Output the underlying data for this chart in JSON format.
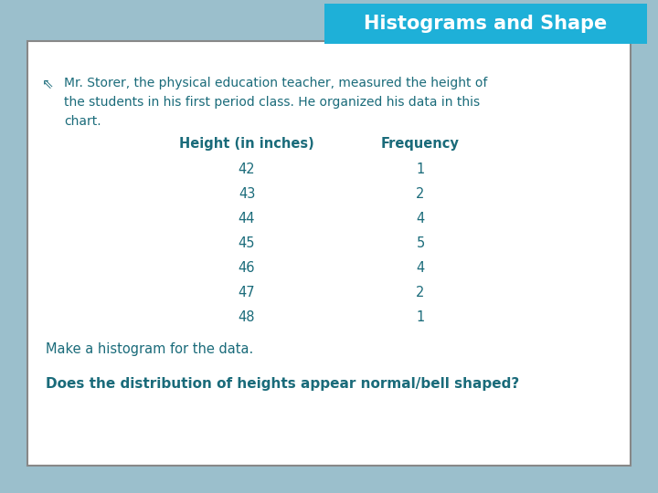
{
  "title": "Histograms and Shape",
  "title_bg_color": "#1EB0D8",
  "title_text_color": "#FFFFFF",
  "slide_bg_color": "#9BBFCC",
  "card_bg_color": "#FFFFFF",
  "teal_color": "#1A6B7A",
  "bullet_text_line1": "Mr. Storer, the physical education teacher, measured the height of",
  "bullet_text_line2": "the students in his first period class. He organized his data in this",
  "bullet_text_line3": "chart.",
  "col1_header": "Height (in inches)",
  "col2_header": "Frequency",
  "heights": [
    42,
    43,
    44,
    45,
    46,
    47,
    48
  ],
  "frequencies": [
    1,
    2,
    4,
    5,
    4,
    2,
    1
  ],
  "question1": "Make a histogram for the data.",
  "question2": "Does the distribution of heights appear normal/bell shaped?",
  "bullet_symbol": "⇖"
}
